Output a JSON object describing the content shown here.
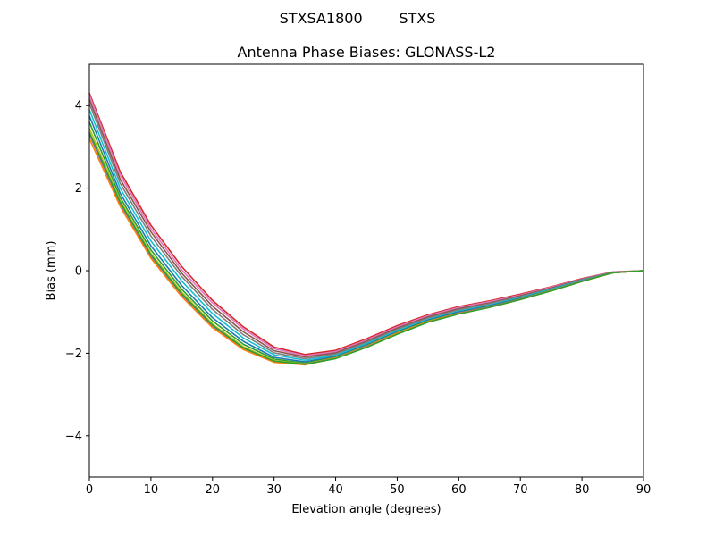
{
  "chart_data": {
    "type": "line",
    "suptitle": "STXSA1800        STXS",
    "title": "Antenna Phase Biases: GLONASS-L2",
    "xlabel": "Elevation angle (degrees)",
    "ylabel": "Bias (mm)",
    "xlim": [
      0,
      90
    ],
    "ylim": [
      -5,
      5
    ],
    "xticks": [
      0,
      10,
      20,
      30,
      40,
      50,
      60,
      70,
      80,
      90
    ],
    "yticks": [
      -4,
      -2,
      0,
      2,
      4
    ],
    "ytick_labels": [
      "−4",
      "−2",
      "0",
      "2",
      "4"
    ],
    "grid": false,
    "legend": "none",
    "x": [
      0,
      5,
      10,
      15,
      20,
      25,
      30,
      35,
      40,
      45,
      50,
      55,
      60,
      65,
      70,
      75,
      80,
      85,
      90
    ],
    "series": [
      {
        "color": "#d62728",
        "values": [
          4.3,
          2.4,
          1.1,
          0.1,
          -0.72,
          -1.36,
          -1.85,
          -2.03,
          -1.93,
          -1.65,
          -1.33,
          -1.07,
          -0.87,
          -0.73,
          -0.57,
          -0.39,
          -0.19,
          -0.03,
          0.0
        ]
      },
      {
        "color": "#e377c2",
        "values": [
          4.25,
          2.32,
          1.02,
          0.02,
          -0.78,
          -1.41,
          -1.89,
          -2.06,
          -1.96,
          -1.68,
          -1.36,
          -1.09,
          -0.89,
          -0.75,
          -0.59,
          -0.4,
          -0.2,
          -0.03,
          0.0
        ]
      },
      {
        "color": "#8c564b",
        "values": [
          4.15,
          2.22,
          0.94,
          -0.06,
          -0.86,
          -1.48,
          -1.94,
          -2.09,
          -1.99,
          -1.71,
          -1.39,
          -1.12,
          -0.92,
          -0.78,
          -0.61,
          -0.42,
          -0.21,
          -0.04,
          0.0
        ]
      },
      {
        "color": "#7f7f7f",
        "values": [
          4.05,
          2.12,
          0.84,
          -0.14,
          -0.94,
          -1.55,
          -1.99,
          -2.13,
          -2.02,
          -1.74,
          -1.42,
          -1.15,
          -0.95,
          -0.8,
          -0.63,
          -0.44,
          -0.22,
          -0.04,
          0.0
        ]
      },
      {
        "color": "#17becf",
        "values": [
          3.9,
          2.0,
          0.72,
          -0.25,
          -1.04,
          -1.63,
          -2.04,
          -2.17,
          -2.05,
          -1.77,
          -1.45,
          -1.18,
          -0.98,
          -0.83,
          -0.65,
          -0.45,
          -0.23,
          -0.05,
          0.0
        ]
      },
      {
        "color": "#1f77b4",
        "values": [
          3.75,
          1.88,
          0.6,
          -0.36,
          -1.14,
          -1.71,
          -2.1,
          -2.21,
          -2.08,
          -1.8,
          -1.48,
          -1.2,
          -1.0,
          -0.85,
          -0.67,
          -0.47,
          -0.24,
          -0.05,
          0.0
        ]
      },
      {
        "color": "#2ca02c",
        "values": [
          3.6,
          1.78,
          0.5,
          -0.45,
          -1.22,
          -1.78,
          -2.14,
          -2.24,
          -2.1,
          -1.82,
          -1.5,
          -1.22,
          -1.02,
          -0.87,
          -0.68,
          -0.48,
          -0.25,
          -0.05,
          0.0
        ]
      },
      {
        "color": "#bcbd22",
        "values": [
          3.45,
          1.7,
          0.42,
          -0.52,
          -1.29,
          -1.84,
          -2.18,
          -2.26,
          -2.11,
          -1.83,
          -1.51,
          -1.23,
          -1.03,
          -0.88,
          -0.69,
          -0.48,
          -0.25,
          -0.05,
          0.0
        ]
      },
      {
        "color": "#9467bd",
        "values": [
          3.3,
          1.62,
          0.35,
          -0.58,
          -1.34,
          -1.88,
          -2.2,
          -2.27,
          -2.12,
          -1.84,
          -1.52,
          -1.24,
          -1.03,
          -0.88,
          -0.69,
          -0.49,
          -0.25,
          -0.05,
          0.0
        ]
      },
      {
        "color": "#ff7f0e",
        "values": [
          3.2,
          1.56,
          0.3,
          -0.63,
          -1.38,
          -1.91,
          -2.22,
          -2.28,
          -2.12,
          -1.85,
          -1.52,
          -1.24,
          -1.04,
          -0.89,
          -0.7,
          -0.49,
          -0.26,
          -0.05,
          0.0
        ]
      },
      {
        "color": "#2ca02c",
        "values": [
          3.35,
          1.66,
          0.38,
          -0.56,
          -1.32,
          -1.87,
          -2.19,
          -2.27,
          -2.13,
          -1.86,
          -1.54,
          -1.25,
          -1.05,
          -0.89,
          -0.7,
          -0.49,
          -0.26,
          -0.05,
          0.0
        ]
      }
    ]
  }
}
